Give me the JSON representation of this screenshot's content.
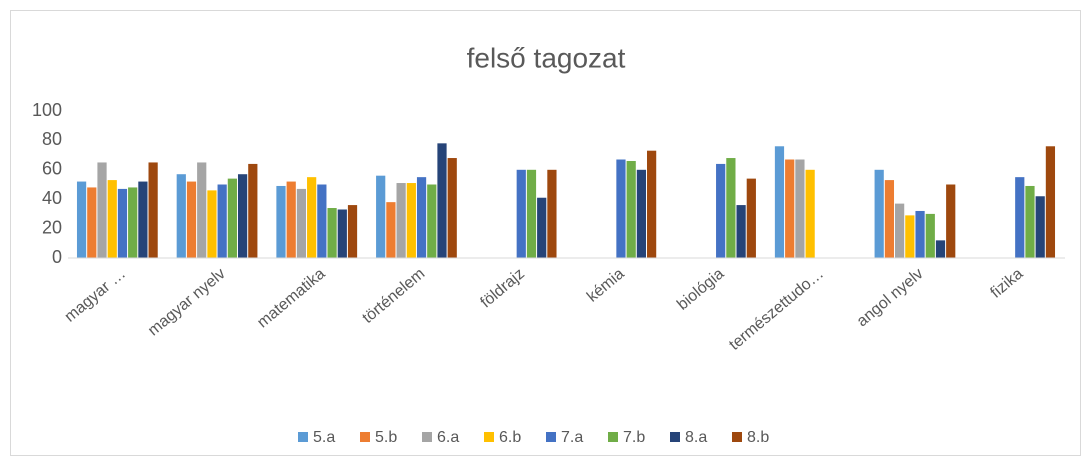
{
  "chart_data": {
    "type": "bar",
    "title": "felső tagozat",
    "categories": [
      "magyar …",
      "magyar nyelv",
      "matematika",
      "történelem",
      "földrajz",
      "kémia",
      "biológia",
      "természettudo…",
      "angol nyelv",
      "fizika"
    ],
    "series": [
      {
        "name": "5.a",
        "color": "#5b9bd5",
        "values": [
          52,
          57,
          49,
          56,
          null,
          null,
          null,
          76,
          60,
          null
        ]
      },
      {
        "name": "5.b",
        "color": "#ed7d31",
        "values": [
          48,
          52,
          52,
          38,
          null,
          null,
          null,
          67,
          53,
          null
        ]
      },
      {
        "name": "6.a",
        "color": "#a5a5a5",
        "values": [
          65,
          65,
          47,
          51,
          null,
          null,
          null,
          67,
          37,
          null
        ]
      },
      {
        "name": "6.b",
        "color": "#ffc000",
        "values": [
          53,
          46,
          55,
          51,
          null,
          null,
          null,
          60,
          29,
          null
        ]
      },
      {
        "name": "7.a",
        "color": "#4472c4",
        "values": [
          47,
          50,
          50,
          55,
          60,
          67,
          64,
          null,
          32,
          55
        ]
      },
      {
        "name": "7.b",
        "color": "#70ad47",
        "values": [
          48,
          54,
          34,
          50,
          60,
          66,
          68,
          null,
          30,
          49
        ]
      },
      {
        "name": "8.a",
        "color": "#264478",
        "values": [
          52,
          57,
          33,
          78,
          41,
          60,
          36,
          null,
          12,
          42
        ]
      },
      {
        "name": "8.b",
        "color": "#9e480e",
        "values": [
          65,
          64,
          36,
          68,
          60,
          73,
          54,
          null,
          50,
          76
        ]
      }
    ],
    "ylim": [
      0,
      100
    ],
    "yticks": [
      0,
      20,
      40,
      60,
      80,
      100
    ],
    "grid": false,
    "legend": "bottom"
  }
}
